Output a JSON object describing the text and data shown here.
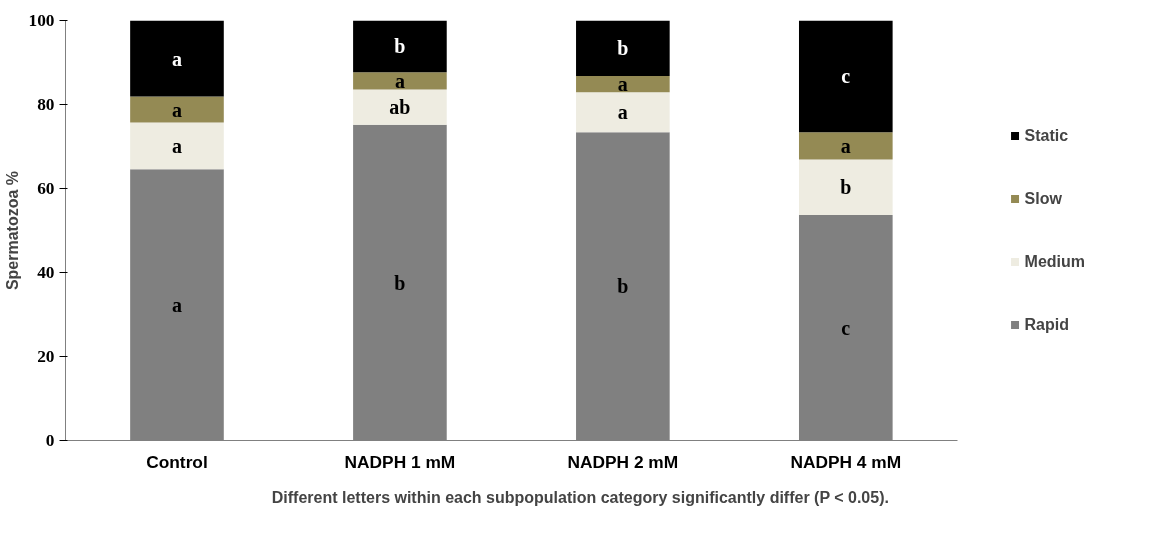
{
  "chart_data": {
    "type": "bar",
    "stacked": true,
    "ylabel": "Spermatozoa %",
    "categories": [
      "Control",
      "NADPH 1 mM",
      "NADPH 2 mM",
      "NADPH 4 mM"
    ],
    "series": [
      {
        "name": "Rapid",
        "color": "#808080",
        "values": [
          64.6,
          75.2,
          73.4,
          53.7
        ],
        "value_labels": [
          "a",
          "b",
          "b",
          "c"
        ]
      },
      {
        "name": "Medium",
        "color": "#eeece1",
        "values": [
          11.1,
          8.4,
          9.5,
          13.2
        ],
        "value_labels": [
          "a",
          "ab",
          "a",
          "b"
        ]
      },
      {
        "name": "Slow",
        "color": "#948a54",
        "values": [
          6.2,
          4.1,
          3.9,
          6.5
        ],
        "value_labels": [
          "a",
          "a",
          "a",
          "a"
        ]
      },
      {
        "name": "Static",
        "color": "#000000",
        "values": [
          18.1,
          12.3,
          13.2,
          26.6
        ],
        "value_labels": [
          "a",
          "b",
          "b",
          "c"
        ]
      }
    ],
    "ylim": [
      0,
      100
    ],
    "yticks": [
      0,
      20,
      40,
      60,
      80,
      100
    ],
    "grid": false,
    "legend": "right",
    "annotations": [
      "Different letters within each subpopulation category significantly differ (P < 0.05)."
    ]
  }
}
